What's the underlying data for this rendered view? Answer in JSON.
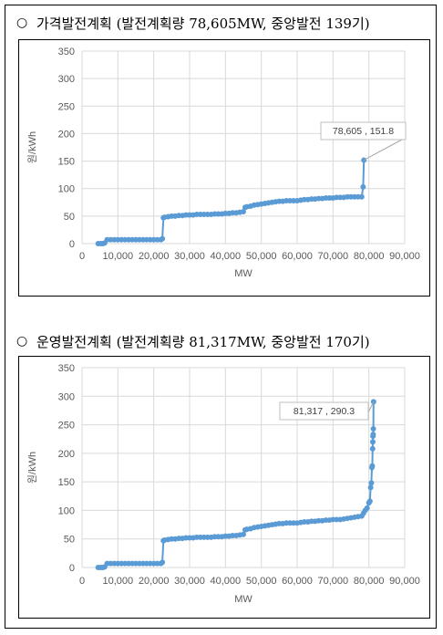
{
  "sections": [
    {
      "bullet": "○",
      "heading": "가격발전계획 (발전계획량 78,605MW, 중앙발전 139기)"
    },
    {
      "bullet": "○",
      "heading": "운영발전계획 (발전계획량 81,317MW, 중앙발전 170기)"
    }
  ],
  "colors": {
    "series": "#5b9bd5",
    "grid": "#d9d9d9",
    "axis_text": "#595959"
  },
  "chart_data": [
    {
      "type": "line",
      "xlabel": "MW",
      "ylabel": "원/kWh",
      "xlim": [
        0,
        90000
      ],
      "ylim": [
        0,
        350
      ],
      "x_ticks": [
        0,
        10000,
        20000,
        30000,
        40000,
        50000,
        60000,
        70000,
        80000,
        90000
      ],
      "x_tick_labels": [
        "0",
        "10,000",
        "20,000",
        "30,000",
        "40,000",
        "50,000",
        "60,000",
        "70,000",
        "80,000",
        "90,000"
      ],
      "y_ticks": [
        0,
        50,
        100,
        150,
        200,
        250,
        300,
        350
      ],
      "grid": true,
      "annotation": {
        "text": "78,605 , 151.8",
        "x": 78605,
        "y": 151.8
      },
      "series": [
        {
          "x": [
            4500,
            5200,
            5800,
            6300,
            7000,
            8000,
            9000,
            10000,
            11000,
            12000,
            13000,
            14000,
            15000,
            16000,
            17000,
            18000,
            19000,
            20000,
            21000,
            22000,
            22400,
            22700,
            23000,
            24000,
            25000,
            26000,
            27000,
            28000,
            29000,
            30000,
            31000,
            32000,
            33000,
            34000,
            35000,
            36000,
            37000,
            38000,
            39000,
            40000,
            41000,
            42000,
            43000,
            44000,
            45000,
            45500,
            46000,
            47000,
            48000,
            49000,
            50000,
            51000,
            52000,
            53000,
            54000,
            55000,
            56000,
            57000,
            58000,
            59000,
            60000,
            61000,
            62000,
            63000,
            64000,
            65000,
            66000,
            67000,
            68000,
            69000,
            70000,
            71000,
            72000,
            73000,
            74000,
            75000,
            76000,
            77000,
            78000,
            78400,
            78605
          ],
          "y": [
            0,
            0,
            0,
            1,
            7,
            7,
            7,
            7,
            7,
            7,
            7,
            7,
            7,
            7,
            7,
            7,
            7,
            7,
            7,
            7,
            9,
            47,
            48,
            49,
            50,
            50,
            51,
            51,
            52,
            52,
            52,
            53,
            53,
            53,
            53,
            53,
            54,
            54,
            54,
            55,
            55,
            56,
            56,
            57,
            58,
            66,
            67,
            68,
            70,
            71,
            72,
            73,
            74,
            75,
            76,
            77,
            77,
            78,
            78,
            78,
            78,
            79,
            80,
            80,
            81,
            81,
            82,
            82,
            83,
            83,
            83,
            84,
            84,
            84,
            85,
            85,
            85,
            85,
            85,
            103,
            151.8
          ]
        }
      ]
    },
    {
      "type": "line",
      "xlabel": "MW",
      "ylabel": "원/kWh",
      "xlim": [
        0,
        90000
      ],
      "ylim": [
        0,
        350
      ],
      "x_ticks": [
        0,
        10000,
        20000,
        30000,
        40000,
        50000,
        60000,
        70000,
        80000,
        90000
      ],
      "x_tick_labels": [
        "0",
        "10,000",
        "20,000",
        "30,000",
        "40,000",
        "50,000",
        "60,000",
        "70,000",
        "80,000",
        "90,000"
      ],
      "y_ticks": [
        0,
        50,
        100,
        150,
        200,
        250,
        300,
        350
      ],
      "grid": true,
      "annotation": {
        "text": "81,317 , 290.3",
        "x": 81317,
        "y": 290.3
      },
      "series": [
        {
          "x": [
            4500,
            5200,
            5800,
            6300,
            7000,
            8000,
            9000,
            10000,
            11000,
            12000,
            13000,
            14000,
            15000,
            16000,
            17000,
            18000,
            19000,
            20000,
            21000,
            22000,
            22400,
            22700,
            23000,
            24000,
            25000,
            26000,
            27000,
            28000,
            29000,
            30000,
            31000,
            32000,
            33000,
            34000,
            35000,
            36000,
            37000,
            38000,
            39000,
            40000,
            41000,
            42000,
            43000,
            44000,
            45000,
            45500,
            46000,
            47000,
            48000,
            49000,
            50000,
            51000,
            52000,
            53000,
            54000,
            55000,
            56000,
            57000,
            58000,
            59000,
            60000,
            61000,
            62000,
            63000,
            64000,
            65000,
            66000,
            67000,
            68000,
            69000,
            70000,
            71000,
            72000,
            73000,
            74000,
            75000,
            76000,
            77000,
            78000,
            78500,
            79000,
            79500,
            80000,
            80300,
            80500,
            80700,
            80850,
            80950,
            81050,
            81100,
            81150,
            81200,
            81250,
            81317
          ],
          "y": [
            0,
            0,
            0,
            1,
            7,
            7,
            7,
            7,
            7,
            7,
            7,
            7,
            7,
            7,
            7,
            7,
            7,
            7,
            7,
            7,
            9,
            47,
            48,
            49,
            50,
            50,
            51,
            51,
            52,
            52,
            52,
            53,
            53,
            53,
            53,
            53,
            54,
            54,
            54,
            55,
            55,
            56,
            56,
            57,
            58,
            66,
            67,
            68,
            70,
            71,
            72,
            73,
            74,
            75,
            76,
            77,
            77,
            78,
            78,
            78,
            78,
            79,
            80,
            80,
            81,
            81,
            82,
            82,
            83,
            83,
            84,
            84,
            84,
            85,
            86,
            87,
            88,
            89,
            90,
            95,
            100,
            104,
            113,
            116,
            140,
            148,
            175,
            178,
            208,
            220,
            230,
            233,
            243,
            290.3
          ]
        }
      ]
    }
  ]
}
